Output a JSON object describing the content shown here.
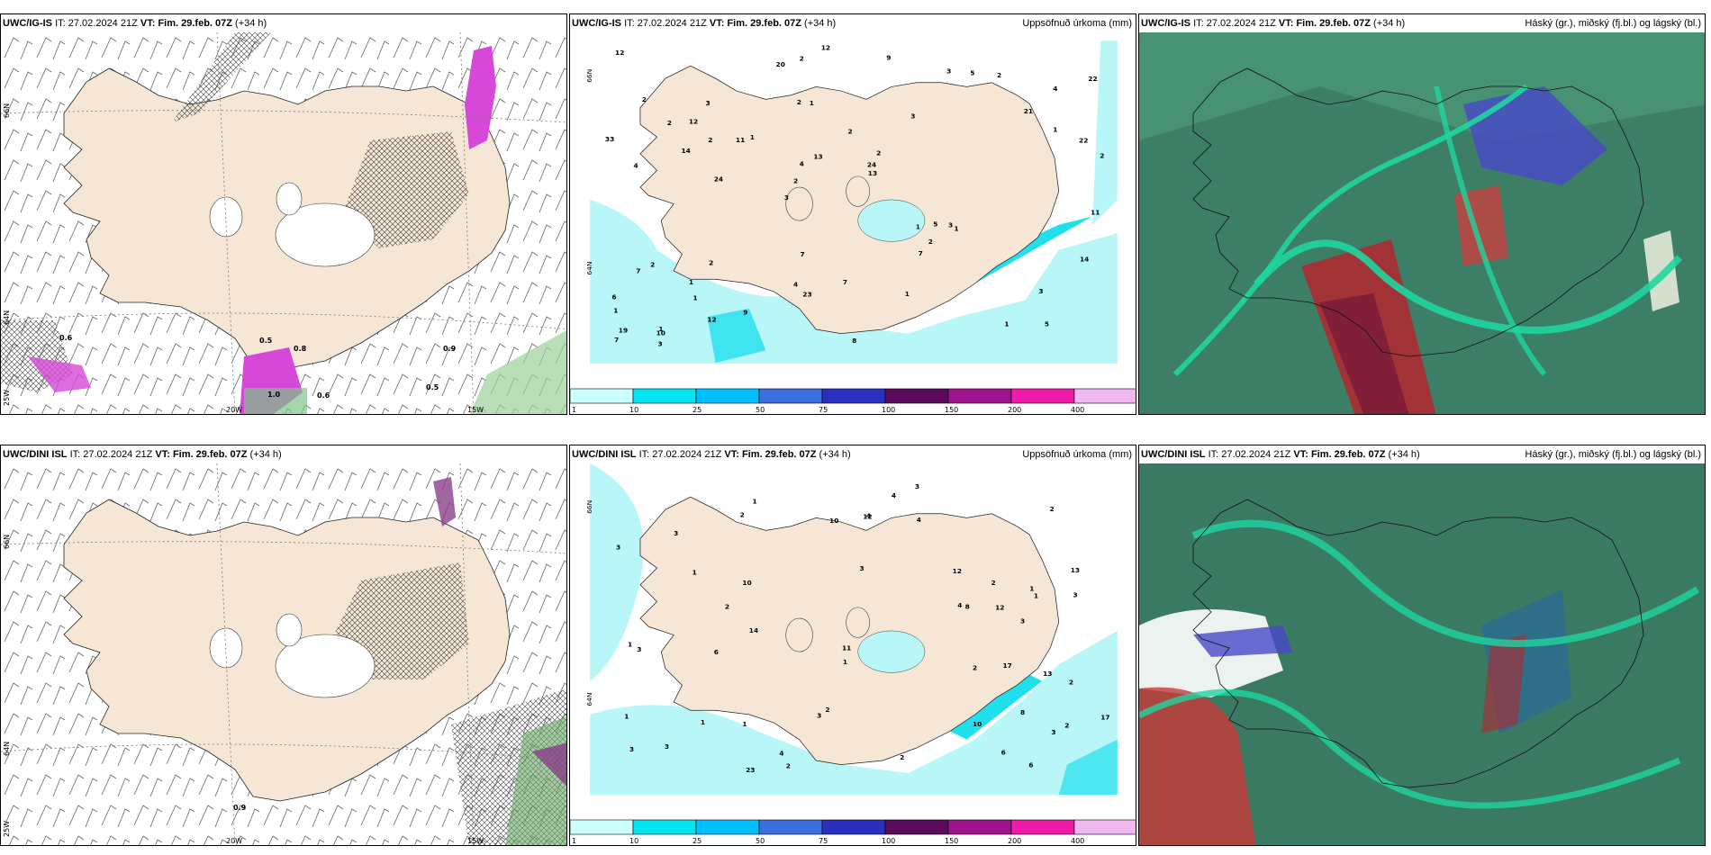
{
  "rows": [
    {
      "model": "UWC/IG-IS",
      "it_label": "IT:",
      "init": "27.02.2024 21Z",
      "vt_label": "VT: Fim. 29.feb. 07Z",
      "lead": "(+34 h)",
      "lon_labels": [
        "20W",
        "15W"
      ],
      "lat_labels": [
        "66N",
        "64N",
        "25W"
      ],
      "wind_contour_values": [
        "0.8",
        "0.5",
        "0.6",
        "0.9",
        "1.0",
        "0.5",
        "0.6"
      ],
      "precip_values": [
        "5",
        "4",
        "4",
        "3",
        "3",
        "1",
        "2",
        "2",
        "2",
        "1",
        "1",
        "1",
        "1",
        "2",
        "1",
        "2",
        "2",
        "2",
        "1",
        "1",
        "2",
        "4",
        "4",
        "3",
        "3",
        "2",
        "1",
        "3",
        "3",
        "8",
        "11",
        "14",
        "7",
        "12",
        "22",
        "24",
        "19",
        "23",
        "13",
        "7",
        "21",
        "22",
        "2",
        "1",
        "1",
        "3",
        "7",
        "7",
        "2",
        "12",
        "24",
        "33",
        "12",
        "5",
        "10",
        "9",
        "20",
        "13",
        "14",
        "7",
        "9",
        "5",
        "2",
        "6",
        "12",
        "2",
        "11"
      ]
    },
    {
      "model": "UWC/DINI ISL",
      "it_label": "IT:",
      "init": "27.02.2024 21Z",
      "vt_label": "VT: Fim. 29.feb. 07Z",
      "lead": "(+34 h)",
      "lon_labels": [
        "20W",
        "15W"
      ],
      "lat_labels": [
        "66N",
        "64N",
        "25W"
      ],
      "wind_contour_values": [
        "0.9"
      ],
      "precip_values": [
        "8",
        "13",
        "2",
        "3",
        "3",
        "1",
        "1",
        "1",
        "2",
        "1",
        "3",
        "3",
        "3",
        "2",
        "1",
        "3",
        "3",
        "2",
        "2",
        "1",
        "1",
        "3",
        "2",
        "4",
        "4",
        "3",
        "4",
        "4",
        "12",
        "17",
        "6",
        "10",
        "23",
        "11",
        "13",
        "6",
        "8",
        "10",
        "6",
        "14",
        "17",
        "12",
        "12",
        "2",
        "2",
        "2",
        "3",
        "3",
        "10",
        "2",
        "1",
        "1",
        "4"
      ]
    }
  ],
  "precip_panel_title": "Uppsöfnuð úrkoma (mm)",
  "cloud_panel_title": "Háský (gr.), miðský (fj.bl.) og lágský (bl.)",
  "legend": {
    "labels": [
      "1",
      "10",
      "25",
      "50",
      "75",
      "100",
      "150",
      "200",
      "400"
    ],
    "colors": [
      "#ccffff",
      "#00e5ee",
      "#00bfff",
      "#3a6fe0",
      "#2a2fbf",
      "#5c0a5a",
      "#a0128c",
      "#ee1aa8",
      "#f0b8f0"
    ]
  },
  "colors": {
    "land": "#f5e6d6",
    "sea": "#ffffff",
    "precip_light": "#b8f6f8",
    "precip_mid": "#20e0ee",
    "precip_magenta": "#d648d8",
    "cloud_green": "#3d9470",
    "cloud_teal": "#1fd6a0",
    "cloud_red": "#b3262e",
    "cloud_blue": "#4848c8"
  }
}
